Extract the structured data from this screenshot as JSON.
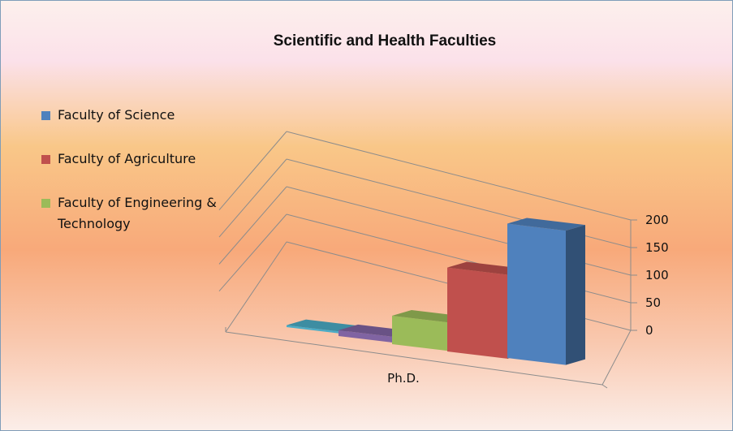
{
  "chart_data": {
    "type": "bar",
    "title": "Scientific and Health Faculties",
    "categories": [
      "Ph.D."
    ],
    "y_ticks": [
      "0",
      "50",
      "100",
      "150",
      "200"
    ],
    "ylim": [
      0,
      200
    ],
    "legend_position": "left",
    "series": [
      {
        "name": "",
        "values": [
          3
        ],
        "color": "#4bacc6"
      },
      {
        "name": "",
        "values": [
          9
        ],
        "color": "#8064a2"
      },
      {
        "name": "Faculty of Engineering & Technology",
        "values": [
          44
        ],
        "color": "#9bbb59"
      },
      {
        "name": "Faculty of Agriculture",
        "values": [
          130
        ],
        "color": "#c0504d"
      },
      {
        "name": "Faculty of Science",
        "values": [
          208
        ],
        "color": "#4f81bd"
      }
    ],
    "legend": [
      {
        "label": "Faculty of Science",
        "color": "#4f81bd"
      },
      {
        "label": "Faculty of Agriculture",
        "color": "#c0504d"
      },
      {
        "label": "Faculty of Engineering & Technology",
        "color": "#9bbb59"
      }
    ],
    "grid": true,
    "style": "3d-column"
  }
}
